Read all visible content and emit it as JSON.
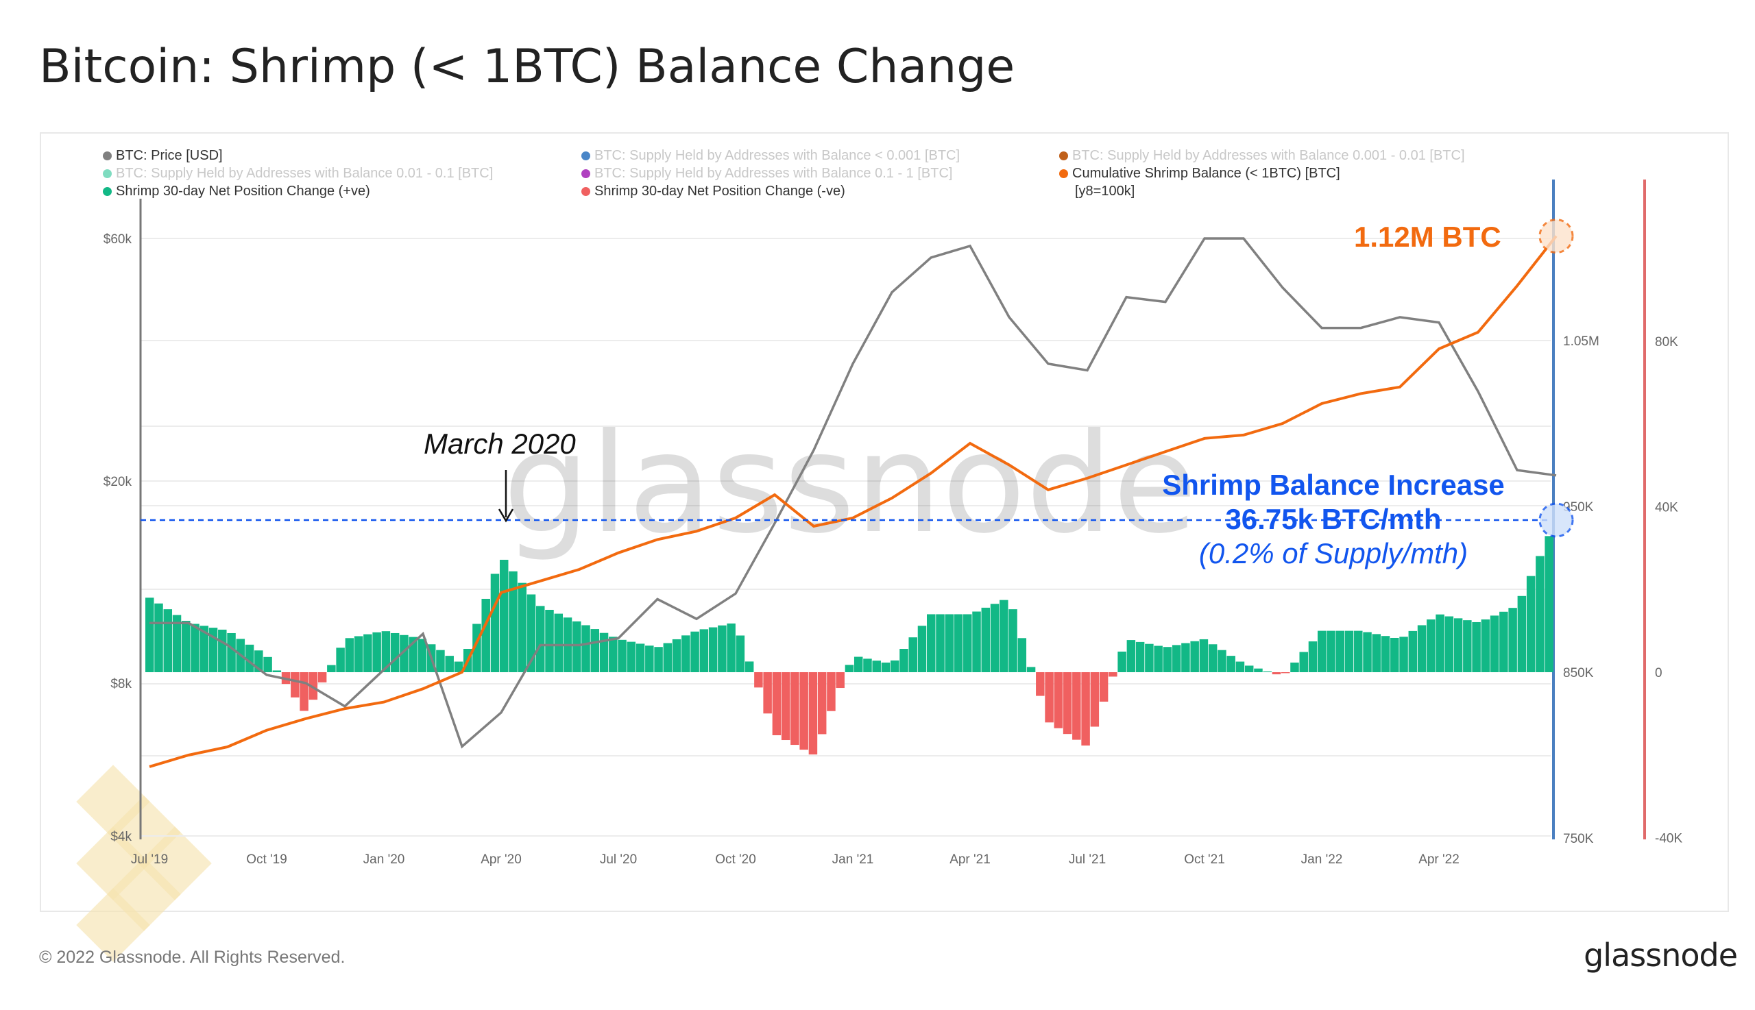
{
  "title": "Bitcoin: Shrimp (< 1BTC) Balance Change",
  "legend": [
    {
      "label": "BTC: Price [USD]",
      "color": "#808080",
      "active": true
    },
    {
      "label": "BTC: Supply Held by Addresses with Balance < 0.001 [BTC]",
      "color": "#4a86c8",
      "active": false
    },
    {
      "label": "BTC: Supply Held by Addresses with Balance 0.001 - 0.01 [BTC]",
      "color": "#c0601a",
      "active": false
    },
    {
      "label": "BTC: Supply Held by Addresses with Balance 0.01 - 0.1 [BTC]",
      "color": "#7fdcc0",
      "active": false
    },
    {
      "label": "BTC: Supply Held by Addresses with Balance 0.1 - 1 [BTC]",
      "color": "#b040c0",
      "active": false
    },
    {
      "label": "Cumulative Shrimp Balance (< 1BTC) [BTC]",
      "color": "#f26a0f",
      "active": true
    },
    {
      "label": "Shrimp 30-day Net Position Change (+ve)",
      "color": "#12b886",
      "active": true
    },
    {
      "label": "Shrimp 30-day Net Position Change (-ve)",
      "color": "#f06060",
      "active": true
    },
    {
      "label": "[y8=100k]",
      "color": "",
      "active": true
    }
  ],
  "annotations": {
    "march": "March 2020",
    "balance": "1.12M BTC",
    "inc1": "Shrimp Balance Increase",
    "inc2": "36.75k BTC/mth",
    "inc3": "(0.2% of Supply/mth)"
  },
  "watermark": "glassnode",
  "footer": {
    "copyright": "© 2022 Glassnode. All Rights Reserved.",
    "logo": "glassnode"
  },
  "colors": {
    "price": "#808080",
    "cumulative": "#f26a0f",
    "positive": "#12b886",
    "negative": "#f06060",
    "blueAxis": "#4a7fc0",
    "redAxis": "#e06a6a",
    "annotation": "#1155ee"
  },
  "chart_data": {
    "type": "line",
    "x": [
      "2019-07",
      "2019-08",
      "2019-09",
      "2019-10",
      "2019-11",
      "2019-12",
      "2020-01",
      "2020-02",
      "2020-03",
      "2020-04",
      "2020-05",
      "2020-06",
      "2020-07",
      "2020-08",
      "2020-09",
      "2020-10",
      "2020-11",
      "2020-12",
      "2021-01",
      "2021-02",
      "2021-03",
      "2021-04",
      "2021-05",
      "2021-06",
      "2021-07",
      "2021-08",
      "2021-09",
      "2021-10",
      "2021-11",
      "2021-12",
      "2022-01",
      "2022-02",
      "2022-03",
      "2022-04",
      "2022-05",
      "2022-06",
      "2022-07"
    ],
    "x_ticks": [
      "Jul '19",
      "Oct '19",
      "Jan '20",
      "Apr '20",
      "Jul '20",
      "Oct '20",
      "Jan '21",
      "Apr '21",
      "Jul '21",
      "Oct '21",
      "Jan '22",
      "Apr '22"
    ],
    "series": [
      {
        "name": "BTC: Price [USD]",
        "axis": "left-log",
        "values": [
          10500,
          10500,
          9500,
          8300,
          8000,
          7200,
          8500,
          10000,
          6000,
          7000,
          9500,
          9500,
          9800,
          11700,
          10700,
          12000,
          16500,
          23000,
          34000,
          47000,
          55000,
          58000,
          42000,
          34000,
          33000,
          46000,
          45000,
          60000,
          60000,
          48000,
          40000,
          40000,
          42000,
          41000,
          30000,
          21000,
          20500
        ]
      },
      {
        "name": "Cumulative Shrimp Balance (< 1BTC) [BTC] (K)",
        "axis": "right-1",
        "values": [
          793,
          800,
          805,
          815,
          822,
          828,
          832,
          840,
          850,
          898,
          905,
          912,
          922,
          930,
          935,
          943,
          957,
          938,
          943,
          955,
          970,
          988,
          975,
          960,
          967,
          975,
          983,
          991,
          993,
          1000,
          1012,
          1018,
          1022,
          1045,
          1055,
          1083,
          1113
        ]
      },
      {
        "name": "Shrimp 30-day Net Position Change (K BTC)",
        "axis": "right-2",
        "values": [
          18,
          12,
          10,
          4,
          -10,
          8,
          10,
          8,
          2,
          28,
          16,
          12,
          8,
          6,
          10,
          12,
          -15,
          -20,
          4,
          2,
          14,
          14,
          18,
          -12,
          -18,
          8,
          6,
          8,
          2,
          -1,
          10,
          10,
          8,
          14,
          12,
          16,
          36.75
        ]
      }
    ],
    "left_axis": {
      "ticks": [
        "$4k",
        "$8k",
        "$20k",
        "$60k"
      ],
      "values": [
        4000,
        8000,
        20000,
        60000
      ],
      "scale": "log"
    },
    "right_axis_1": {
      "ticks": [
        "750K",
        "850K",
        "950K",
        "1.05M"
      ],
      "range": [
        750,
        1100
      ]
    },
    "right_axis_2": {
      "ticks": [
        "-40K",
        "0",
        "40K",
        "80K"
      ],
      "range": [
        -40,
        100
      ]
    },
    "reference_line": 36.75
  }
}
